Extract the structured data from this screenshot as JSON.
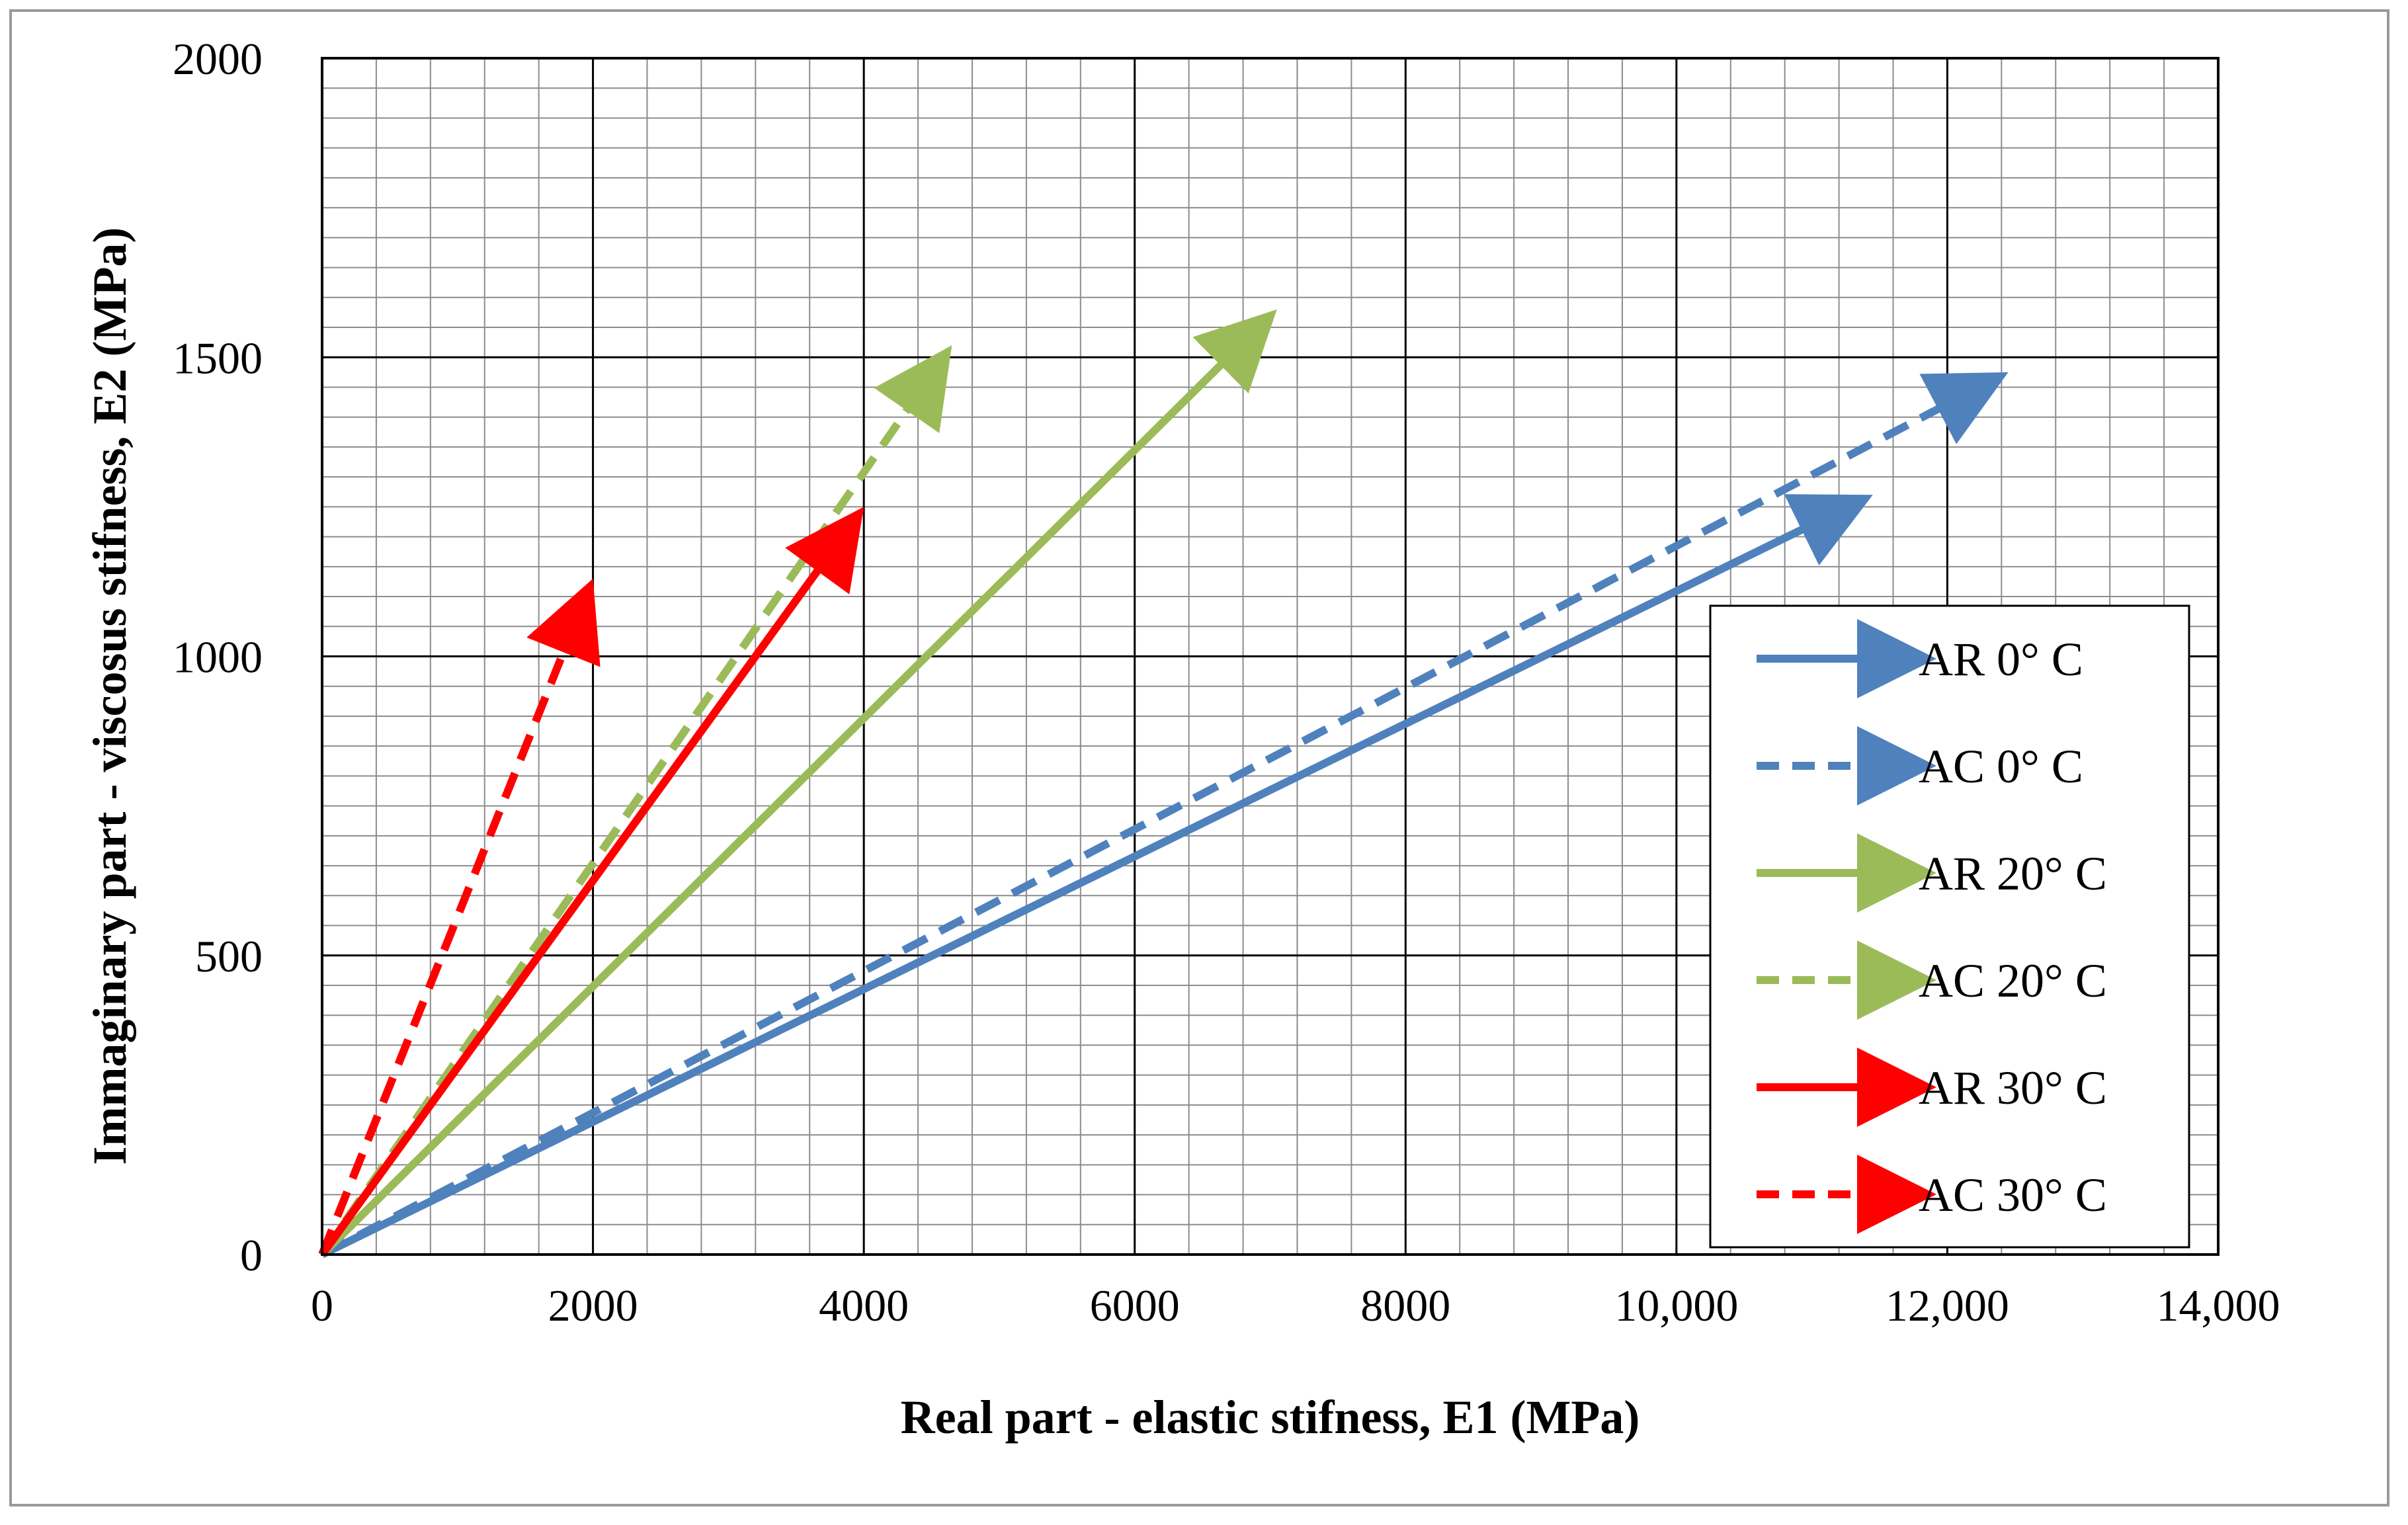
{
  "chart_data": {
    "type": "line",
    "title": "",
    "xlabel": "Real part - elastic stifness, E1 (MPa)",
    "ylabel": "Immaginary part - viscosus stifness, E2 (MPa)",
    "xlim": [
      0,
      14000
    ],
    "ylim": [
      0,
      2000
    ],
    "x_ticks": [
      0,
      2000,
      4000,
      6000,
      8000,
      10000,
      12000,
      14000
    ],
    "x_tick_labels": [
      "0",
      "2000",
      "4000",
      "6000",
      "8000",
      "10,000",
      "12,000",
      "14,000"
    ],
    "y_ticks": [
      0,
      500,
      1000,
      1500,
      2000
    ],
    "y_tick_labels": [
      "0",
      "500",
      "1000",
      "1500",
      "2000"
    ],
    "grid": true,
    "legend_position": "bottom-right",
    "series": [
      {
        "name": "AR 0° C",
        "color": "#4f81bd",
        "dashed": false,
        "x": [
          0,
          11450
        ],
        "y": [
          0,
          1270
        ]
      },
      {
        "name": "AC 0° C",
        "color": "#4f81bd",
        "dashed": true,
        "x": [
          0,
          12450
        ],
        "y": [
          0,
          1475
        ]
      },
      {
        "name": "AR 20° C",
        "color": "#9bbb59",
        "dashed": false,
        "x": [
          0,
          7050
        ],
        "y": [
          0,
          1580
        ]
      },
      {
        "name": "AC 20° C",
        "color": "#9bbb59",
        "dashed": true,
        "x": [
          0,
          4650
        ],
        "y": [
          0,
          1520
        ]
      },
      {
        "name": "AR 30° C",
        "color": "#ff0000",
        "dashed": false,
        "x": [
          0,
          4000
        ],
        "y": [
          0,
          1250
        ]
      },
      {
        "name": "AC 30° C",
        "color": "#ff0000",
        "dashed": true,
        "x": [
          0,
          2000
        ],
        "y": [
          0,
          1130
        ]
      }
    ]
  }
}
